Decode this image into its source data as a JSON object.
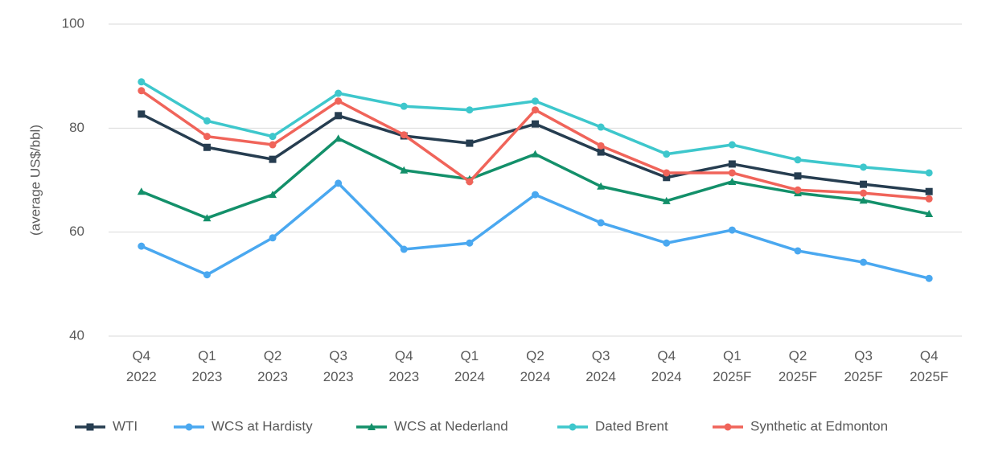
{
  "chart_data": {
    "type": "line",
    "y_label": "(average US$/bbl)",
    "categories": [
      "Q4 2022",
      "Q1 2023",
      "Q2 2023",
      "Q3 2023",
      "Q4 2023",
      "Q1 2024",
      "Q2 2024",
      "Q3 2024",
      "Q4 2024",
      "Q1 2025F",
      "Q2 2025F",
      "Q3 2025F",
      "Q4 2025F"
    ],
    "series": [
      {
        "name": "WTI",
        "color": "#263d50",
        "marker": "square",
        "values": [
          82.7,
          76.3,
          74.0,
          82.4,
          78.5,
          77.1,
          80.8,
          75.4,
          70.5,
          73.1,
          70.8,
          69.2,
          67.8
        ]
      },
      {
        "name": "WCS at Hardisty",
        "color": "#4aa8f0",
        "marker": "circle",
        "values": [
          57.3,
          51.8,
          58.9,
          69.4,
          56.7,
          57.9,
          67.2,
          61.8,
          57.9,
          60.4,
          56.4,
          54.2,
          51.1
        ]
      },
      {
        "name": "WCS at Nederland",
        "color": "#13906a",
        "marker": "triangle",
        "values": [
          67.8,
          62.7,
          67.2,
          78.0,
          71.9,
          70.2,
          75.0,
          68.8,
          66.0,
          69.7,
          67.5,
          66.1,
          63.5
        ]
      },
      {
        "name": "Dated Brent",
        "color": "#3ec7cc",
        "marker": "circle",
        "values": [
          88.9,
          81.4,
          78.4,
          86.7,
          84.2,
          83.5,
          85.2,
          80.2,
          75.0,
          76.8,
          73.9,
          72.5,
          71.4
        ]
      },
      {
        "name": "Synthetic at Edmonton",
        "color": "#f0645a",
        "marker": "circle",
        "values": [
          87.2,
          78.4,
          76.8,
          85.2,
          78.7,
          69.7,
          83.5,
          76.6,
          71.4,
          71.4,
          68.1,
          67.5,
          66.4
        ]
      }
    ],
    "ylim": [
      40,
      100
    ],
    "yticks": [
      40,
      60,
      80,
      100
    ],
    "grid": true,
    "legend": "bottom"
  }
}
